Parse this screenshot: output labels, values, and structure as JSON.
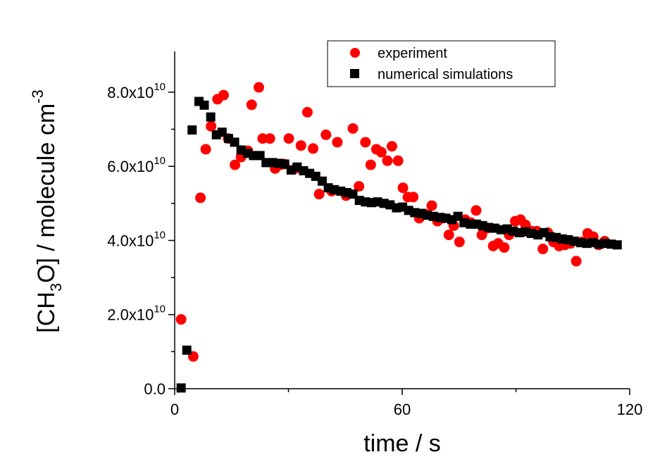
{
  "chart_data": {
    "type": "scatter",
    "title": "",
    "xlabel": "time / s",
    "ylabel": {
      "prefix": "[CH",
      "sub": "3",
      "middle": "O] / molecule cm",
      "sup": "-3"
    },
    "xlim": [
      0,
      120
    ],
    "ylim": [
      0,
      91000000000.0
    ],
    "x_ticks": [
      {
        "value": 0,
        "label": "0"
      },
      {
        "value": 60,
        "label": "60"
      },
      {
        "value": 120,
        "label": "120"
      }
    ],
    "y_ticks": [
      {
        "value": 0,
        "label": "0.0",
        "mantissa": "",
        "exponent": ""
      },
      {
        "value": 20000000000.0,
        "label": "2.0x10^10",
        "mantissa": "2.0x10",
        "exponent": "10"
      },
      {
        "value": 40000000000.0,
        "label": "4.0x10^10",
        "mantissa": "4.0x10",
        "exponent": "10"
      },
      {
        "value": 60000000000.0,
        "label": "6.0x10^10",
        "mantissa": "6.0x10",
        "exponent": "10"
      },
      {
        "value": 80000000000.0,
        "label": "8.0x10^10",
        "mantissa": "8.0x10",
        "exponent": "10"
      }
    ],
    "legend": {
      "placement": "top-right",
      "boxed": true
    },
    "grid": false,
    "series": [
      {
        "name": "experiment",
        "marker": "circle",
        "color": "#ff0000",
        "points": [
          [
            1.7,
            18700000000.0
          ],
          [
            4.9,
            8700000000.0
          ],
          [
            6.8,
            51500000000.0
          ],
          [
            8.2,
            64600000000.0
          ],
          [
            9.6,
            70800000000.0
          ],
          [
            11.3,
            78100000000.0
          ],
          [
            12.9,
            79200000000.0
          ],
          [
            14.1,
            67500000000.0
          ],
          [
            15.9,
            60400000000.0
          ],
          [
            17.5,
            62500000000.0
          ],
          [
            19.3,
            64200000000.0
          ],
          [
            20.3,
            76600000000.0
          ],
          [
            22.2,
            81300000000.0
          ],
          [
            23.2,
            67500000000.0
          ],
          [
            25.1,
            67500000000.0
          ],
          [
            26.5,
            59400000000.0
          ],
          [
            27.8,
            60400000000.0
          ],
          [
            28.9,
            60600000000.0
          ],
          [
            30.1,
            67500000000.0
          ],
          [
            31.9,
            59400000000.0
          ],
          [
            33.3,
            65600000000.0
          ],
          [
            35.0,
            74600000000.0
          ],
          [
            36.5,
            64800000000.0
          ],
          [
            38.1,
            52500000000.0
          ],
          [
            39.9,
            68500000000.0
          ],
          [
            41.4,
            53300000000.0
          ],
          [
            42.9,
            66500000000.0
          ],
          [
            45.2,
            52100000000.0
          ],
          [
            47.0,
            70200000000.0
          ],
          [
            48.6,
            54600000000.0
          ],
          [
            50.3,
            66500000000.0
          ],
          [
            51.7,
            60400000000.0
          ],
          [
            53.2,
            64600000000.0
          ],
          [
            54.5,
            63800000000.0
          ],
          [
            56.1,
            61500000000.0
          ],
          [
            57.3,
            65400000000.0
          ],
          [
            58.9,
            61500000000.0
          ],
          [
            60.2,
            54200000000.0
          ],
          [
            61.5,
            51700000000.0
          ],
          [
            62.9,
            51700000000.0
          ],
          [
            64.5,
            46000000000.0
          ],
          [
            66.1,
            47100000000.0
          ],
          [
            67.8,
            49400000000.0
          ],
          [
            69.3,
            45200000000.0
          ],
          [
            70.8,
            46000000000.0
          ],
          [
            72.3,
            41500000000.0
          ],
          [
            73.6,
            44000000000.0
          ],
          [
            75.1,
            39600000000.0
          ],
          [
            76.6,
            45600000000.0
          ],
          [
            78.1,
            44800000000.0
          ],
          [
            79.5,
            48100000000.0
          ],
          [
            81.0,
            41500000000.0
          ],
          [
            82.5,
            43300000000.0
          ],
          [
            84.0,
            38500000000.0
          ],
          [
            85.3,
            39200000000.0
          ],
          [
            86.9,
            38100000000.0
          ],
          [
            88.2,
            41500000000.0
          ],
          [
            89.8,
            45200000000.0
          ],
          [
            91.2,
            45600000000.0
          ],
          [
            92.5,
            44200000000.0
          ],
          [
            94.1,
            42500000000.0
          ],
          [
            95.5,
            42500000000.0
          ],
          [
            97.1,
            37700000000.0
          ],
          [
            98.4,
            42100000000.0
          ],
          [
            99.9,
            39600000000.0
          ],
          [
            101.4,
            38500000000.0
          ],
          [
            102.9,
            38800000000.0
          ],
          [
            104.4,
            39200000000.0
          ],
          [
            105.9,
            34400000000.0
          ],
          [
            107.4,
            39600000000.0
          ],
          [
            108.9,
            41900000000.0
          ],
          [
            110.4,
            41000000000.0
          ],
          [
            111.8,
            38800000000.0
          ],
          [
            113.4,
            39800000000.0
          ]
        ]
      },
      {
        "name": "numerical simulations",
        "marker": "square",
        "color": "#000000",
        "points": [
          [
            1.7,
            200000000.0
          ],
          [
            3.2,
            10400000000.0
          ],
          [
            4.6,
            69800000000.0
          ],
          [
            6.4,
            77500000000.0
          ],
          [
            7.8,
            76500000000.0
          ],
          [
            9.5,
            73300000000.0
          ],
          [
            11.0,
            68500000000.0
          ],
          [
            12.5,
            69200000000.0
          ],
          [
            14.2,
            67500000000.0
          ],
          [
            15.8,
            66500000000.0
          ],
          [
            17.5,
            64400000000.0
          ],
          [
            19.2,
            63500000000.0
          ],
          [
            20.8,
            62900000000.0
          ],
          [
            22.5,
            62900000000.0
          ],
          [
            24.1,
            61000000000.0
          ],
          [
            25.8,
            61000000000.0
          ],
          [
            27.4,
            60800000000.0
          ],
          [
            29.0,
            60600000000.0
          ],
          [
            30.7,
            59000000000.0
          ],
          [
            32.3,
            59800000000.0
          ],
          [
            34.0,
            58800000000.0
          ],
          [
            35.6,
            58100000000.0
          ],
          [
            37.2,
            57300000000.0
          ],
          [
            38.9,
            56000000000.0
          ],
          [
            40.5,
            54200000000.0
          ],
          [
            42.1,
            53700000000.0
          ],
          [
            43.8,
            53300000000.0
          ],
          [
            45.4,
            52900000000.0
          ],
          [
            47.0,
            52500000000.0
          ],
          [
            48.7,
            50800000000.0
          ],
          [
            50.3,
            50400000000.0
          ],
          [
            51.9,
            50200000000.0
          ],
          [
            53.5,
            50400000000.0
          ],
          [
            55.2,
            50000000000.0
          ],
          [
            56.8,
            49600000000.0
          ],
          [
            58.5,
            48800000000.0
          ],
          [
            60.1,
            49000000000.0
          ],
          [
            61.7,
            48100000000.0
          ],
          [
            63.3,
            47500000000.0
          ],
          [
            65.0,
            47300000000.0
          ],
          [
            66.6,
            46800000000.0
          ],
          [
            68.2,
            46500000000.0
          ],
          [
            69.9,
            46200000000.0
          ],
          [
            71.5,
            46000000000.0
          ],
          [
            73.1,
            45600000000.0
          ],
          [
            74.7,
            46500000000.0
          ],
          [
            76.3,
            44800000000.0
          ],
          [
            78.0,
            44400000000.0
          ],
          [
            79.6,
            44400000000.0
          ],
          [
            81.2,
            44000000000.0
          ],
          [
            82.8,
            43500000000.0
          ],
          [
            84.4,
            43300000000.0
          ],
          [
            86.1,
            42900000000.0
          ],
          [
            87.7,
            43100000000.0
          ],
          [
            89.3,
            42500000000.0
          ],
          [
            90.9,
            42100000000.0
          ],
          [
            92.5,
            42300000000.0
          ],
          [
            94.1,
            41900000000.0
          ],
          [
            95.8,
            41500000000.0
          ],
          [
            97.4,
            42100000000.0
          ],
          [
            99.0,
            41000000000.0
          ],
          [
            100.6,
            40800000000.0
          ],
          [
            102.2,
            40400000000.0
          ],
          [
            103.8,
            40200000000.0
          ],
          [
            105.4,
            39800000000.0
          ],
          [
            107.1,
            39400000000.0
          ],
          [
            108.7,
            39200000000.0
          ],
          [
            110.3,
            39400000000.0
          ],
          [
            111.9,
            39000000000.0
          ],
          [
            113.5,
            39200000000.0
          ],
          [
            115.1,
            39000000000.0
          ],
          [
            116.7,
            38800000000.0
          ]
        ]
      }
    ]
  }
}
